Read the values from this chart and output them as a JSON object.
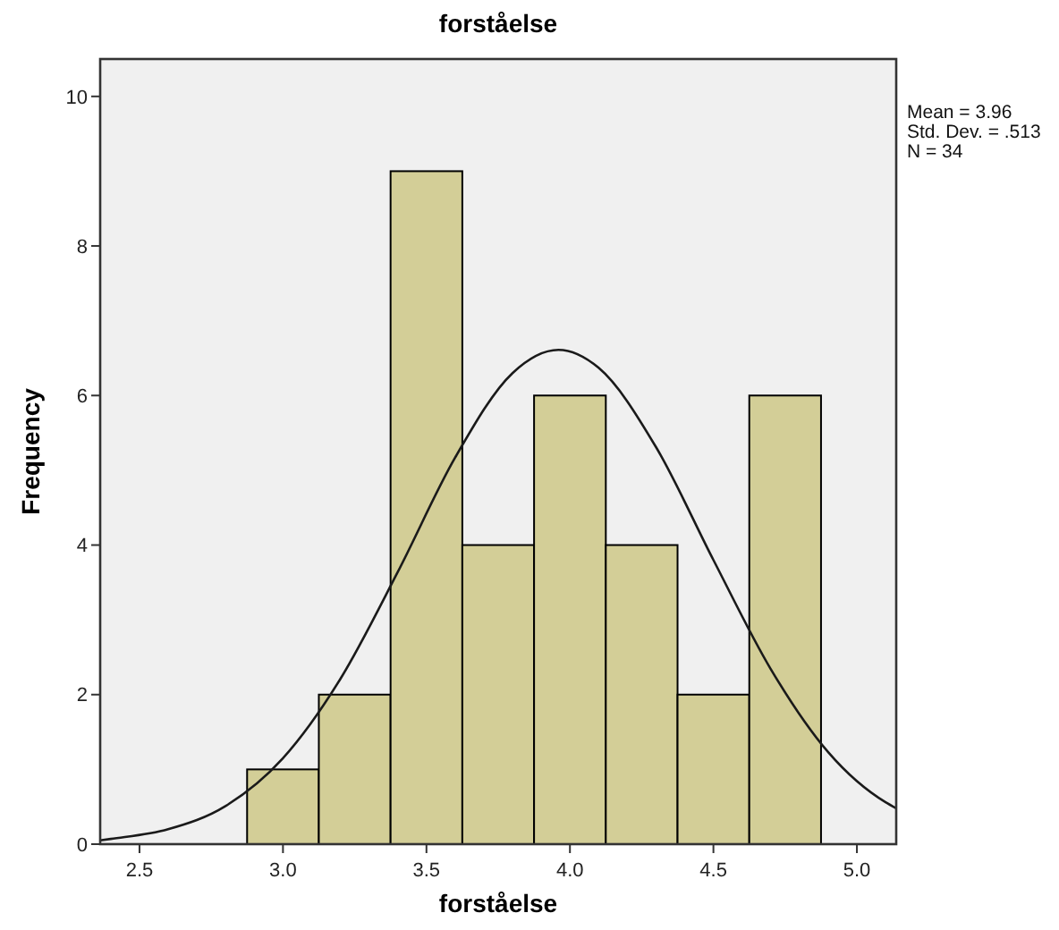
{
  "chart_data": {
    "type": "histogram",
    "title": "forståelse",
    "xlabel": "forståelse",
    "ylabel": "Frequency",
    "bins": [
      2.875,
      3.125,
      3.375,
      3.625,
      3.875,
      4.125,
      4.375,
      4.625,
      4.875
    ],
    "values": [
      1,
      2,
      9,
      4,
      6,
      4,
      2,
      6
    ],
    "color": "#d3ce97",
    "series": [
      {
        "type": "line",
        "color": "#1a1a1a",
        "x": [
          2.363,
          2.4,
          2.6,
          2.8,
          3.0,
          3.2,
          3.4,
          3.6,
          3.8,
          3.96,
          4.1,
          4.3,
          4.5,
          4.7,
          4.9,
          5.1,
          5.137
        ],
        "values": [
          0.05,
          0.07,
          0.2,
          0.51,
          1.15,
          2.21,
          3.64,
          5.17,
          6.3,
          6.61,
          6.37,
          5.31,
          3.8,
          2.34,
          1.23,
          0.56,
          0.48
        ]
      }
    ],
    "xlim": [
      2.363,
      5.137
    ],
    "xticks": [
      {
        "value": 2.5,
        "label": "2.5"
      },
      {
        "value": 3,
        "label": "3.0"
      },
      {
        "value": 3.5,
        "label": "3.5"
      },
      {
        "value": 4,
        "label": "4.0"
      },
      {
        "value": 4.5,
        "label": "4.5"
      },
      {
        "value": 5,
        "label": "5.0"
      }
    ],
    "ylim": [
      0,
      10.5
    ],
    "yticks": [
      0,
      2,
      4,
      6,
      8,
      10
    ],
    "grid": false,
    "marker": "none",
    "line_style": "solid",
    "annotations": [
      "Mean = 3.96",
      "Std. Dev. = .513",
      "N = 34"
    ]
  }
}
